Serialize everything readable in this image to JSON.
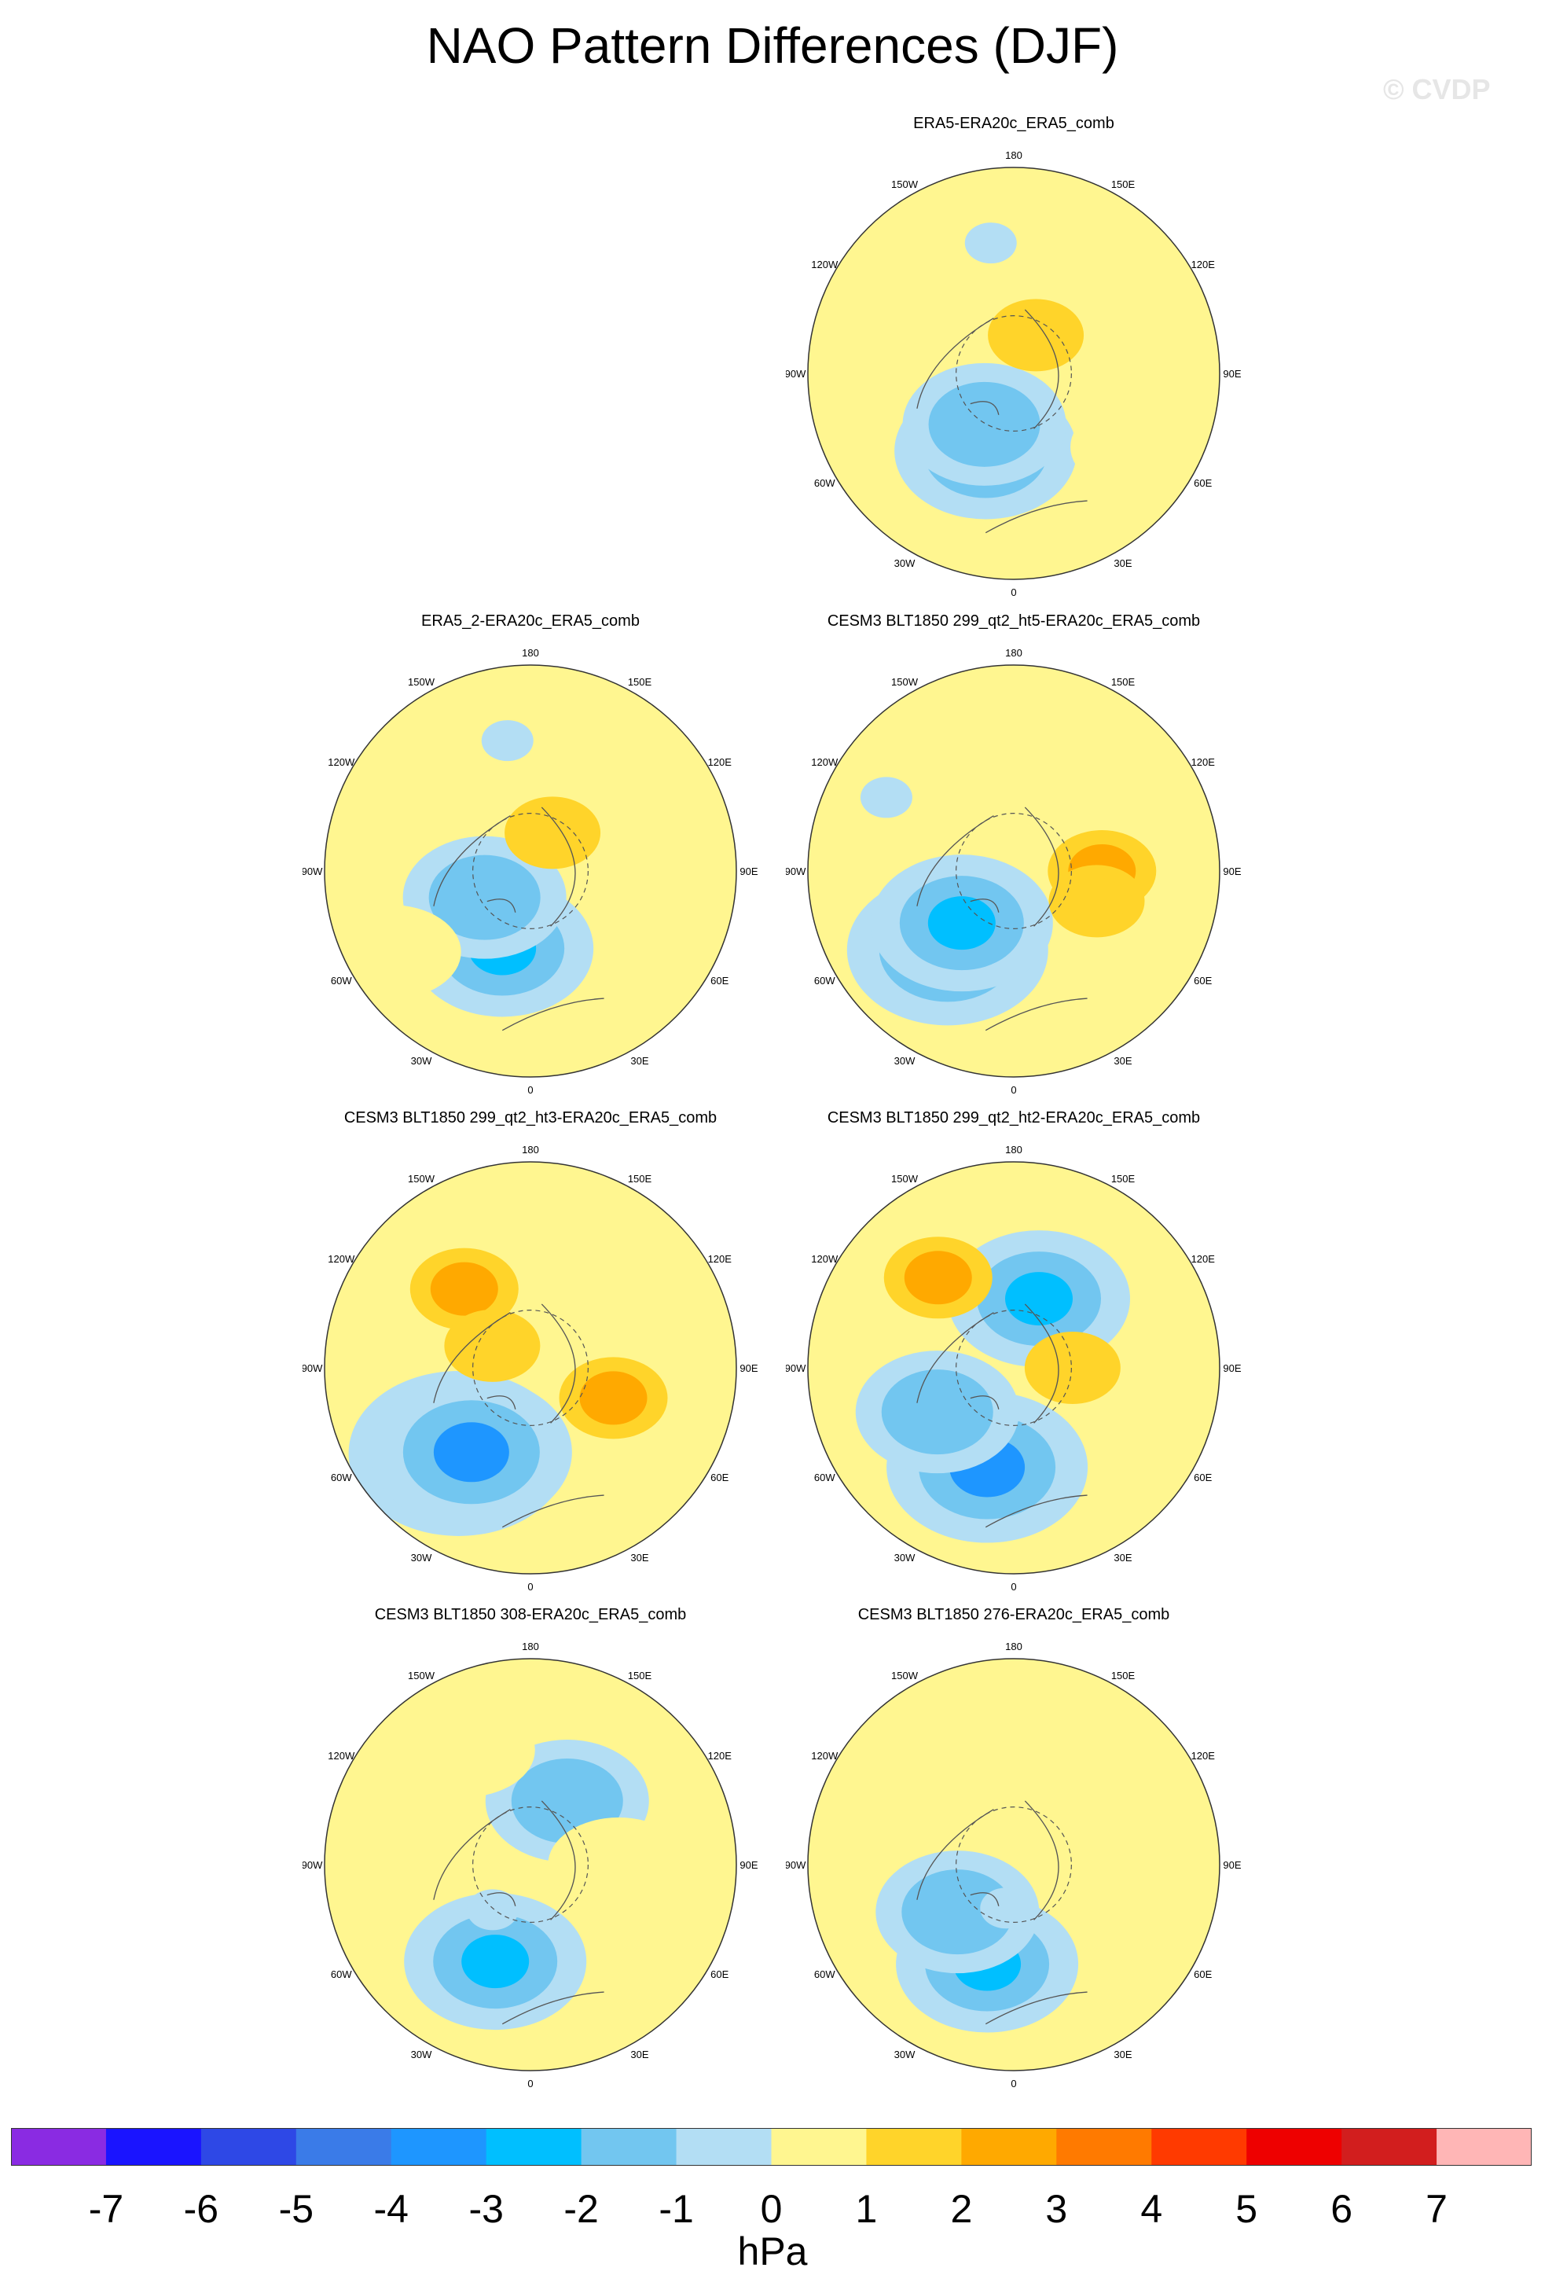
{
  "title": "NAO Pattern Differences (DJF)",
  "watermark": "© CVDP",
  "longitude_labels": {
    "top": "180",
    "bottom": "0",
    "upper_left": "150W",
    "upper_right": "150E",
    "left_upper": "120W",
    "right_upper": "120E",
    "left": "90W",
    "right": "90E",
    "left_lower": "60W",
    "right_lower": "60E",
    "lower_left": "30W",
    "lower_right": "30E"
  },
  "panels": [
    {
      "title": "ERA5-ERA20c_ERA5_comb",
      "anomalies": [
        {
          "lat": 62,
          "lon": -20,
          "level": -3
        },
        {
          "lat": 70,
          "lon": -30,
          "level": -2
        },
        {
          "lat": 75,
          "lon": 150,
          "level": 1
        },
        {
          "lat": 45,
          "lon": -170,
          "level": -1
        },
        {
          "lat": 40,
          "lon": 60,
          "level": 0
        }
      ]
    },
    {
      "title": "ERA5_2-ERA20c_ERA5_comb",
      "anomalies": [
        {
          "lat": 62,
          "lon": -20,
          "level": -3
        },
        {
          "lat": 72,
          "lon": -60,
          "level": -2
        },
        {
          "lat": 75,
          "lon": 150,
          "level": 1
        },
        {
          "lat": 45,
          "lon": -170,
          "level": -1
        },
        {
          "lat": 35,
          "lon": -60,
          "level": 0
        }
      ]
    },
    {
      "title": "CESM3 BLT1850 299_qt2_ht5-ERA20c_ERA5_comb",
      "anomalies": [
        {
          "lat": 55,
          "lon": -40,
          "level": -4
        },
        {
          "lat": 65,
          "lon": -45,
          "level": -3
        },
        {
          "lat": 60,
          "lon": 90,
          "level": 2
        },
        {
          "lat": 60,
          "lon": 70,
          "level": 1
        },
        {
          "lat": 40,
          "lon": -120,
          "level": -1
        }
      ]
    },
    {
      "title": "CESM3 BLT1850 299_qt2_ht3-ERA20c_ERA5_comb",
      "anomalies": [
        {
          "lat": 52,
          "lon": -40,
          "level": -5
        },
        {
          "lat": 55,
          "lon": -35,
          "level": -4
        },
        {
          "lat": 60,
          "lon": 70,
          "level": 2
        },
        {
          "lat": 55,
          "lon": -140,
          "level": 2
        },
        {
          "lat": 75,
          "lon": -120,
          "level": 1
        }
      ]
    },
    {
      "title": "CESM3 BLT1850 299_qt2_ht2-ERA20c_ERA5_comb",
      "anomalies": [
        {
          "lat": 55,
          "lon": -15,
          "level": -4
        },
        {
          "lat": 65,
          "lon": 160,
          "level": -3
        },
        {
          "lat": 50,
          "lon": -140,
          "level": 2
        },
        {
          "lat": 70,
          "lon": 90,
          "level": 1
        },
        {
          "lat": 60,
          "lon": -60,
          "level": -2
        }
      ]
    },
    {
      "title": "CESM3 BLT1850 308-ERA20c_ERA5_comb",
      "anomalies": [
        {
          "lat": 55,
          "lon": -20,
          "level": -3
        },
        {
          "lat": 65,
          "lon": 150,
          "level": -2
        },
        {
          "lat": 60,
          "lon": 90,
          "level": 0
        },
        {
          "lat": 45,
          "lon": -150,
          "level": 0
        },
        {
          "lat": 70,
          "lon": -40,
          "level": -1
        }
      ]
    },
    {
      "title": "CESM3 BLT1850 276-ERA20c_ERA5_comb",
      "anomalies": [
        {
          "lat": 55,
          "lon": -15,
          "level": -3
        },
        {
          "lat": 65,
          "lon": -50,
          "level": -2
        },
        {
          "lat": 60,
          "lon": 100,
          "level": 0
        },
        {
          "lat": 40,
          "lon": 160,
          "level": 0
        },
        {
          "lat": 75,
          "lon": -10,
          "level": -1
        }
      ]
    }
  ],
  "colorbar": {
    "colors": [
      "#8a2be2",
      "#1a14ff",
      "#2e48e6",
      "#3a7be8",
      "#1e96ff",
      "#00bfff",
      "#72c6f0",
      "#b3def4",
      "#fff690",
      "#ffd42a",
      "#ffa900",
      "#ff7a00",
      "#ff3a00",
      "#ee0000",
      "#d21e1e",
      "#ffb6b6"
    ],
    "tick_labels": [
      "-7",
      "-6",
      "-5",
      "-4",
      "-3",
      "-2",
      "-1",
      "0",
      "1",
      "2",
      "3",
      "4",
      "5",
      "6",
      "7"
    ],
    "units": "hPa"
  }
}
